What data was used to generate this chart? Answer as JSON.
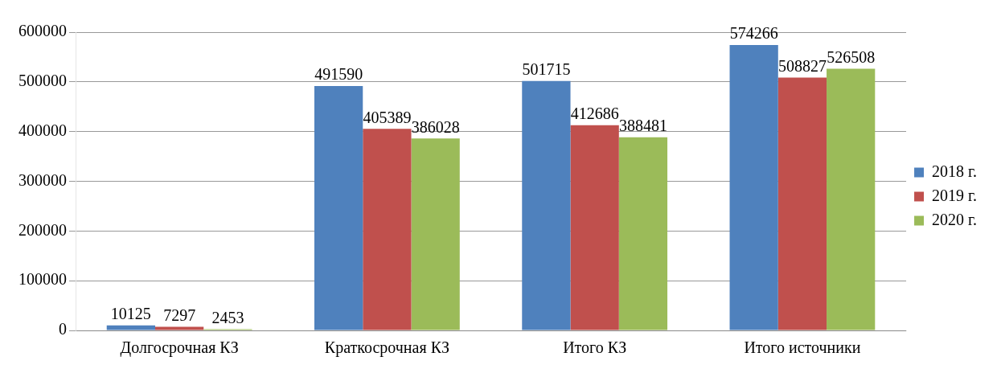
{
  "chart_data": {
    "type": "bar",
    "categories": [
      "Долгосрочная КЗ",
      "Краткосрочная КЗ",
      "Итого КЗ",
      "Итого источники"
    ],
    "series": [
      {
        "name": "2018 г.",
        "color": "#4f81bd",
        "values": [
          10125,
          491590,
          501715,
          574266
        ]
      },
      {
        "name": "2019 г.",
        "color": "#c0504d",
        "values": [
          7297,
          405389,
          412686,
          508827
        ]
      },
      {
        "name": "2020 г.",
        "color": "#9bbb59",
        "values": [
          2453,
          386028,
          388481,
          526508
        ]
      }
    ],
    "ylim": [
      0,
      600000
    ],
    "yticks": [
      0,
      100000,
      200000,
      300000,
      400000,
      500000,
      600000
    ],
    "grid": "y",
    "legend": "right",
    "data_labels": true
  }
}
